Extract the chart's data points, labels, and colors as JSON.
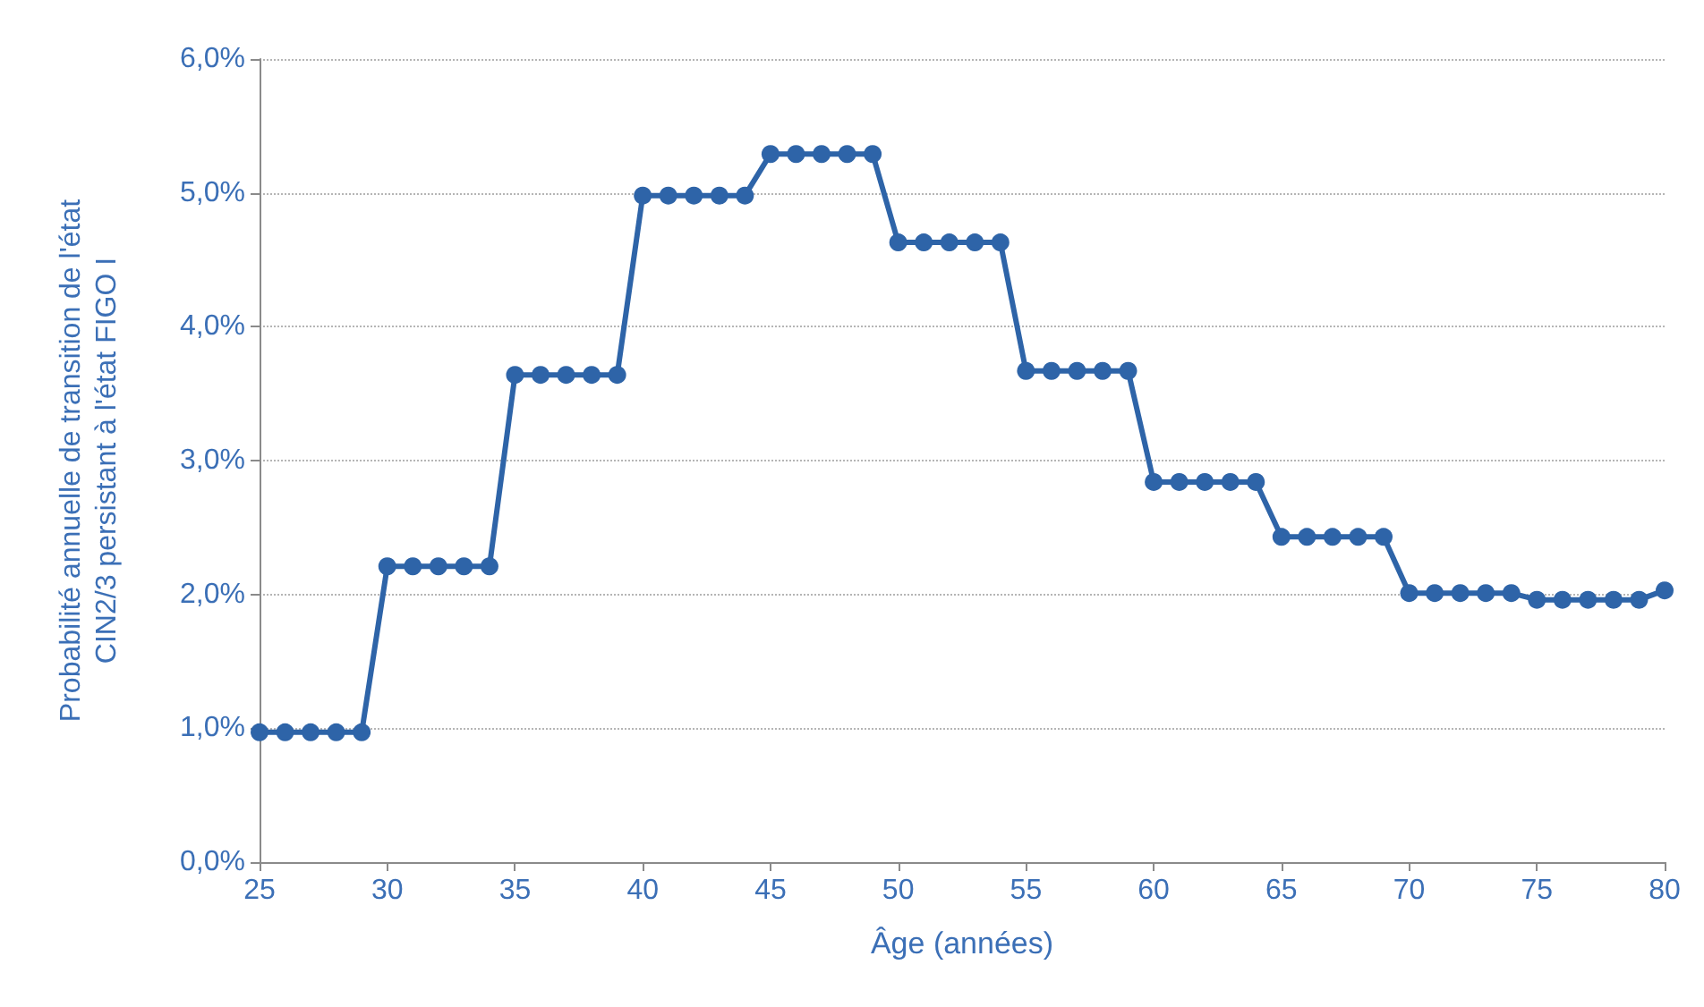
{
  "chart_data": {
    "type": "line",
    "xlabel": "Âge (années)",
    "ylabel": "Probabilité annuelle de transition de l'état\nCIN2/3 persistant à l'état FIGO I",
    "x": [
      25,
      26,
      27,
      28,
      29,
      30,
      31,
      32,
      33,
      34,
      35,
      36,
      37,
      38,
      39,
      40,
      41,
      42,
      43,
      44,
      45,
      46,
      47,
      48,
      49,
      50,
      51,
      52,
      53,
      54,
      55,
      56,
      57,
      58,
      59,
      60,
      61,
      62,
      63,
      64,
      65,
      66,
      67,
      68,
      69,
      70,
      71,
      72,
      73,
      74,
      75,
      76,
      77,
      78,
      79,
      80
    ],
    "series": [
      {
        "color": "#2e64a8",
        "values": [
          0.97,
          0.97,
          0.97,
          0.97,
          0.97,
          2.21,
          2.21,
          2.21,
          2.21,
          2.21,
          3.64,
          3.64,
          3.64,
          3.64,
          3.64,
          4.98,
          4.98,
          4.98,
          4.98,
          4.98,
          5.29,
          5.29,
          5.29,
          5.29,
          5.29,
          4.63,
          4.63,
          4.63,
          4.63,
          4.63,
          3.67,
          3.67,
          3.67,
          3.67,
          3.67,
          2.84,
          2.84,
          2.84,
          2.84,
          2.84,
          2.43,
          2.43,
          2.43,
          2.43,
          2.43,
          2.01,
          2.01,
          2.01,
          2.01,
          2.01,
          1.96,
          1.96,
          1.96,
          1.96,
          1.96,
          2.03
        ]
      }
    ],
    "xlim": [
      25,
      80
    ],
    "xticks": [
      25,
      30,
      35,
      40,
      45,
      50,
      55,
      60,
      65,
      70,
      75,
      80
    ],
    "ylim": [
      0,
      6
    ],
    "yticks": [
      {
        "value": 0,
        "label": "0,0%"
      },
      {
        "value": 1,
        "label": "1,0%"
      },
      {
        "value": 2,
        "label": "2,0%"
      },
      {
        "value": 3,
        "label": "3,0%"
      },
      {
        "value": 4,
        "label": "4,0%"
      },
      {
        "value": 5,
        "label": "5,0%"
      },
      {
        "value": 6,
        "label": "6,0%"
      }
    ],
    "grid": "y",
    "marker": "circle",
    "line_style": "solid"
  }
}
